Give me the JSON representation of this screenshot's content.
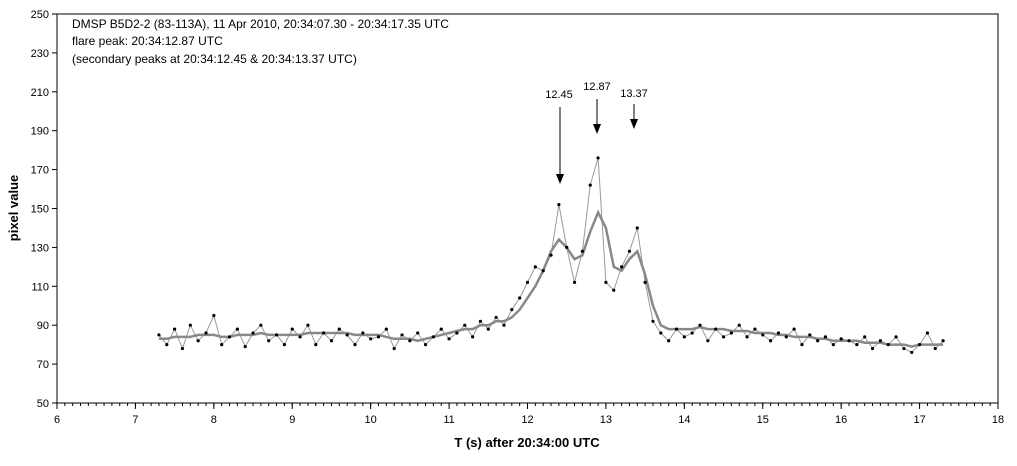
{
  "chart_data": {
    "type": "scatter",
    "title_lines": [
      "DMSP B5D2-2 (83-113A), 11 Apr 2010, 20:34:07.30 - 20:34:17.35 UTC",
      "flare peak: 20:34:12.87 UTC",
      "(secondary peaks at   20:34:12.45 & 20:34:13.37 UTC)"
    ],
    "annotations": [
      "12.45",
      "12.87",
      "13.37"
    ],
    "xlabel": "T (s) after 20:34:00 UTC",
    "ylabel": "pixel value",
    "xlim": [
      6,
      18
    ],
    "xticks": [
      6,
      7,
      8,
      9,
      10,
      11,
      12,
      13,
      14,
      15,
      16,
      17,
      18
    ],
    "ylim": [
      50,
      250
    ],
    "yticks": [
      50,
      70,
      90,
      110,
      130,
      150,
      170,
      190,
      210,
      230,
      250
    ],
    "x": [
      7.3,
      7.4,
      7.5,
      7.6,
      7.7,
      7.8,
      7.9,
      8.0,
      8.1,
      8.2,
      8.3,
      8.4,
      8.5,
      8.6,
      8.7,
      8.8,
      8.9,
      9.0,
      9.1,
      9.2,
      9.3,
      9.4,
      9.5,
      9.6,
      9.7,
      9.8,
      9.9,
      10.0,
      10.1,
      10.2,
      10.3,
      10.4,
      10.5,
      10.6,
      10.7,
      10.8,
      10.9,
      11.0,
      11.1,
      11.2,
      11.3,
      11.4,
      11.5,
      11.6,
      11.7,
      11.8,
      11.9,
      12.0,
      12.1,
      12.2,
      12.3,
      12.4,
      12.5,
      12.6,
      12.7,
      12.8,
      12.9,
      13.0,
      13.1,
      13.2,
      13.3,
      13.4,
      13.5,
      13.6,
      13.7,
      13.8,
      13.9,
      14.0,
      14.1,
      14.2,
      14.3,
      14.4,
      14.5,
      14.6,
      14.7,
      14.8,
      14.9,
      15.0,
      15.1,
      15.2,
      15.3,
      15.4,
      15.5,
      15.6,
      15.7,
      15.8,
      15.9,
      16.0,
      16.1,
      16.2,
      16.3,
      16.4,
      16.5,
      16.6,
      16.7,
      16.8,
      16.9,
      17.0,
      17.1,
      17.2,
      17.3
    ],
    "series": [
      {
        "color": "#000000",
        "line_color": "#999999",
        "marker": true,
        "line_width": 1,
        "values": [
          85,
          80,
          88,
          78,
          90,
          82,
          86,
          95,
          80,
          84,
          88,
          79,
          86,
          90,
          82,
          85,
          80,
          88,
          84,
          90,
          80,
          86,
          82,
          88,
          85,
          80,
          86,
          83,
          84,
          88,
          78,
          85,
          82,
          86,
          80,
          84,
          88,
          83,
          86,
          90,
          84,
          92,
          88,
          94,
          90,
          98,
          104,
          112,
          120,
          118,
          126,
          152,
          130,
          112,
          128,
          162,
          176,
          112,
          108,
          120,
          128,
          140,
          112,
          92,
          86,
          82,
          88,
          84,
          86,
          90,
          82,
          88,
          84,
          86,
          90,
          84,
          88,
          85,
          82,
          86,
          84,
          88,
          80,
          85,
          82,
          84,
          80,
          83,
          82,
          80,
          84,
          78,
          82,
          80,
          84,
          78,
          76,
          80,
          86,
          78,
          82
        ]
      },
      {
        "color": "#888888",
        "line_color": "#888888",
        "marker": false,
        "line_width": 2.5,
        "values": [
          83,
          83,
          84,
          84,
          84,
          85,
          85,
          85,
          84,
          84,
          85,
          85,
          85,
          86,
          85,
          85,
          85,
          85,
          85,
          86,
          86,
          86,
          86,
          86,
          86,
          85,
          85,
          85,
          85,
          84,
          83,
          83,
          83,
          82,
          83,
          84,
          85,
          86,
          87,
          88,
          88,
          90,
          90,
          92,
          92,
          94,
          98,
          104,
          110,
          118,
          128,
          134,
          130,
          124,
          126,
          138,
          148,
          140,
          120,
          118,
          124,
          128,
          116,
          100,
          90,
          88,
          88,
          88,
          88,
          89,
          88,
          88,
          88,
          87,
          87,
          87,
          86,
          86,
          86,
          85,
          85,
          84,
          84,
          84,
          83,
          83,
          82,
          82,
          82,
          82,
          81,
          81,
          81,
          80,
          80,
          80,
          79,
          80,
          80,
          80,
          80
        ]
      }
    ]
  }
}
